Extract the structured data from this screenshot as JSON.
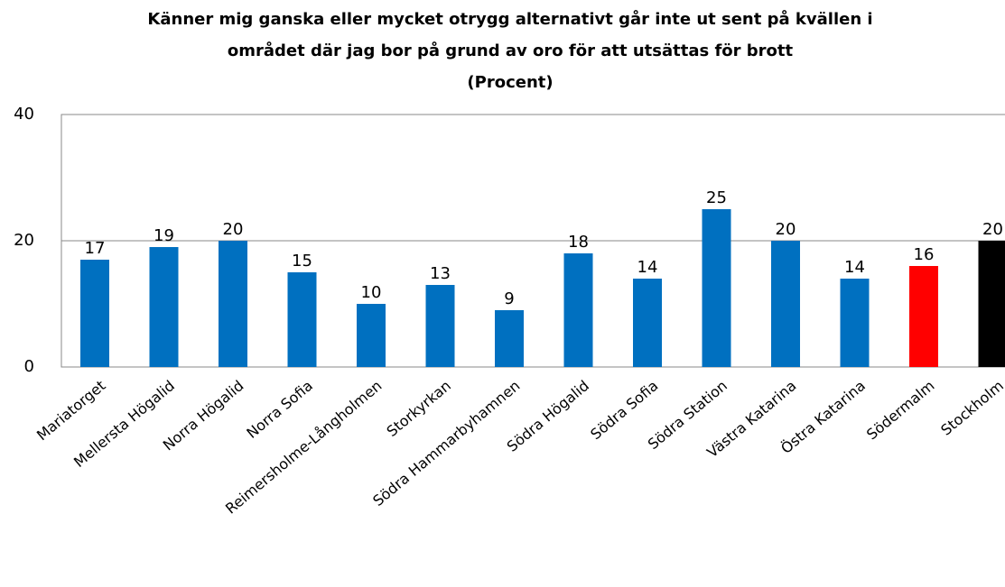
{
  "chart_data": {
    "type": "bar",
    "title": [
      "Känner mig ganska eller mycket otrygg alternativt går inte ut sent på kvällen i",
      "området där jag bor på grund av oro för att utsättas för brott"
    ],
    "subtitle": "(Procent)",
    "categories": [
      "Mariatorget",
      "Mellersta Högalid",
      "Norra Högalid",
      "Norra Sofia",
      "Reimersholme-Långholmen",
      "Storkyrkan",
      "Södra Hammarbyhamnen",
      "Södra Högalid",
      "Södra Sofia",
      "Södra Station",
      "Västra Katarina",
      "Östra Katarina",
      "Södermalm",
      "Stockholm"
    ],
    "values": [
      17,
      19,
      20,
      15,
      10,
      13,
      9,
      18,
      14,
      25,
      20,
      14,
      16,
      20
    ],
    "colors": [
      "#0070c0",
      "#0070c0",
      "#0070c0",
      "#0070c0",
      "#0070c0",
      "#0070c0",
      "#0070c0",
      "#0070c0",
      "#0070c0",
      "#0070c0",
      "#0070c0",
      "#0070c0",
      "#ff0000",
      "#000000"
    ],
    "ylim": [
      0,
      40
    ],
    "yticks": [
      0,
      20,
      40
    ],
    "grid": true
  }
}
